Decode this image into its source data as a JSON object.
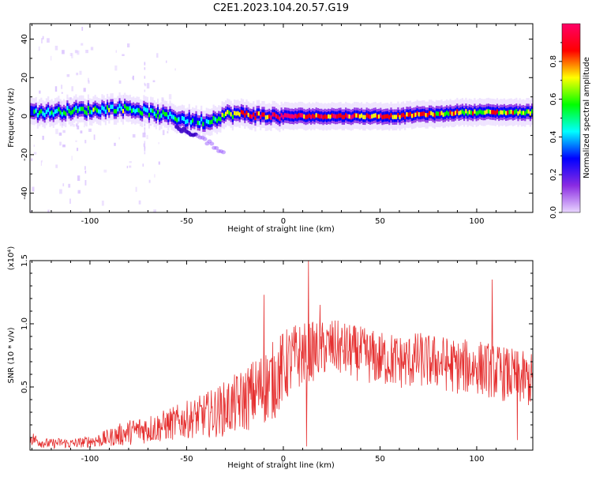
{
  "title": "C2E1.2023.104.20.57.G19",
  "colors": {
    "snr_line": "#e53030",
    "axis": "#000000",
    "background": "#ffffff"
  },
  "chart_data": [
    {
      "type": "heatmap",
      "xlabel": "Height of straight line (km)",
      "ylabel": "Frequency (Hz)",
      "xlim": [
        -131,
        129
      ],
      "ylim": [
        -50,
        48
      ],
      "x_ticks": [
        "-100",
        "-50",
        "0",
        "50",
        "100"
      ],
      "x_tick_values": [
        -100,
        -50,
        0,
        50,
        100
      ],
      "y_ticks": [
        "40",
        "20",
        "0",
        "-20",
        "-40"
      ],
      "y_tick_values": [
        40,
        20,
        0,
        -20,
        -40
      ],
      "grid": false,
      "colorbar": {
        "label": "Normalized spectral amplitude",
        "range": [
          0,
          1
        ],
        "ticks": [
          "0.0",
          "0.2",
          "0.4",
          "0.6",
          "0.8"
        ],
        "tick_values": [
          0.0,
          0.2,
          0.4,
          0.6,
          0.8
        ],
        "colormap": [
          "#ffffff",
          "#e9d5ff",
          "#8a2be2",
          "#0000ff",
          "#00ffff",
          "#00ff00",
          "#ffff00",
          "#ff0000",
          "#ff0066"
        ]
      },
      "ridge": {
        "x": [
          -131,
          -120,
          -110,
          -100,
          -90,
          -80,
          -70,
          -60,
          -50,
          -40,
          -35,
          -30,
          -20,
          -10,
          0,
          10,
          20,
          30,
          40,
          50,
          60,
          70,
          80,
          90,
          100,
          110,
          120,
          129
        ],
        "frequency_hz": [
          2,
          2,
          3,
          3,
          4,
          4,
          2,
          0,
          -2,
          -3,
          -1,
          1,
          1,
          0,
          0,
          0,
          0,
          0,
          0,
          0,
          0,
          1,
          1,
          2,
          2,
          2,
          2,
          2
        ],
        "peak_amplitude": [
          0.5,
          0.55,
          0.55,
          0.6,
          0.6,
          0.6,
          0.55,
          0.55,
          0.5,
          0.5,
          0.55,
          0.65,
          0.8,
          0.9,
          0.95,
          0.9,
          0.85,
          0.9,
          0.85,
          0.85,
          0.8,
          0.8,
          0.75,
          0.75,
          0.7,
          0.75,
          0.7,
          0.65
        ]
      },
      "branch": {
        "x": [
          -55,
          -50,
          -45,
          -40,
          -35,
          -30
        ],
        "frequency_hz": [
          -6,
          -8,
          -10,
          -13,
          -16,
          -20
        ]
      }
    },
    {
      "type": "line",
      "xlabel": "Height of straight line (km)",
      "ylabel": "SNR (10 * v/v)",
      "scale_label": "(x10⁴)",
      "xlim": [
        -131,
        129
      ],
      "ylim": [
        0,
        1.5
      ],
      "x_ticks": [
        "-100",
        "-50",
        "0",
        "50",
        "100"
      ],
      "x_tick_values": [
        -100,
        -50,
        0,
        50,
        100
      ],
      "y_ticks": [
        "0.5",
        "1.0",
        "1.5"
      ],
      "y_tick_values": [
        0.5,
        1.0,
        1.5
      ],
      "grid": false,
      "series": [
        {
          "x": [
            -131,
            -125,
            -120,
            -115,
            -110,
            -105,
            -100,
            -95,
            -90,
            -85,
            -80,
            -75,
            -70,
            -65,
            -60,
            -55,
            -50,
            -45,
            -40,
            -35,
            -30,
            -25,
            -20,
            -15,
            -10,
            -5,
            0,
            5,
            10,
            15,
            20,
            25,
            30,
            35,
            40,
            45,
            50,
            55,
            60,
            65,
            70,
            75,
            80,
            85,
            90,
            95,
            100,
            105,
            110,
            115,
            120,
            125,
            129
          ],
          "values": [
            0.1,
            0.06,
            0.05,
            0.06,
            0.05,
            0.06,
            0.07,
            0.08,
            0.1,
            0.12,
            0.14,
            0.16,
            0.17,
            0.18,
            0.2,
            0.22,
            0.24,
            0.26,
            0.28,
            0.3,
            0.33,
            0.36,
            0.4,
            0.45,
            0.5,
            0.55,
            0.65,
            0.72,
            0.76,
            0.78,
            0.8,
            0.82,
            0.8,
            0.78,
            0.76,
            0.74,
            0.72,
            0.72,
            0.7,
            0.7,
            0.72,
            0.7,
            0.7,
            0.68,
            0.66,
            0.66,
            0.66,
            0.64,
            0.62,
            0.6,
            0.58,
            0.56,
            0.55
          ],
          "noise_amplitude": [
            0.06,
            0.04,
            0.04,
            0.04,
            0.04,
            0.04,
            0.05,
            0.06,
            0.07,
            0.09,
            0.1,
            0.11,
            0.12,
            0.12,
            0.13,
            0.14,
            0.15,
            0.16,
            0.18,
            0.2,
            0.22,
            0.24,
            0.26,
            0.28,
            0.3,
            0.32,
            0.3,
            0.28,
            0.26,
            0.24,
            0.22,
            0.22,
            0.22,
            0.22,
            0.22,
            0.22,
            0.22,
            0.22,
            0.22,
            0.22,
            0.22,
            0.22,
            0.22,
            0.22,
            0.22,
            0.22,
            0.22,
            0.22,
            0.22,
            0.22,
            0.22,
            0.22,
            0.22
          ]
        }
      ],
      "spikes": [
        {
          "x": -10,
          "value": 1.23
        },
        {
          "x": 13,
          "value": 1.5
        },
        {
          "x": 19,
          "value": 1.15
        },
        {
          "x": 108,
          "value": 1.35
        },
        {
          "x": 12,
          "value": 0.03
        },
        {
          "x": 121,
          "value": 0.08
        }
      ]
    }
  ]
}
